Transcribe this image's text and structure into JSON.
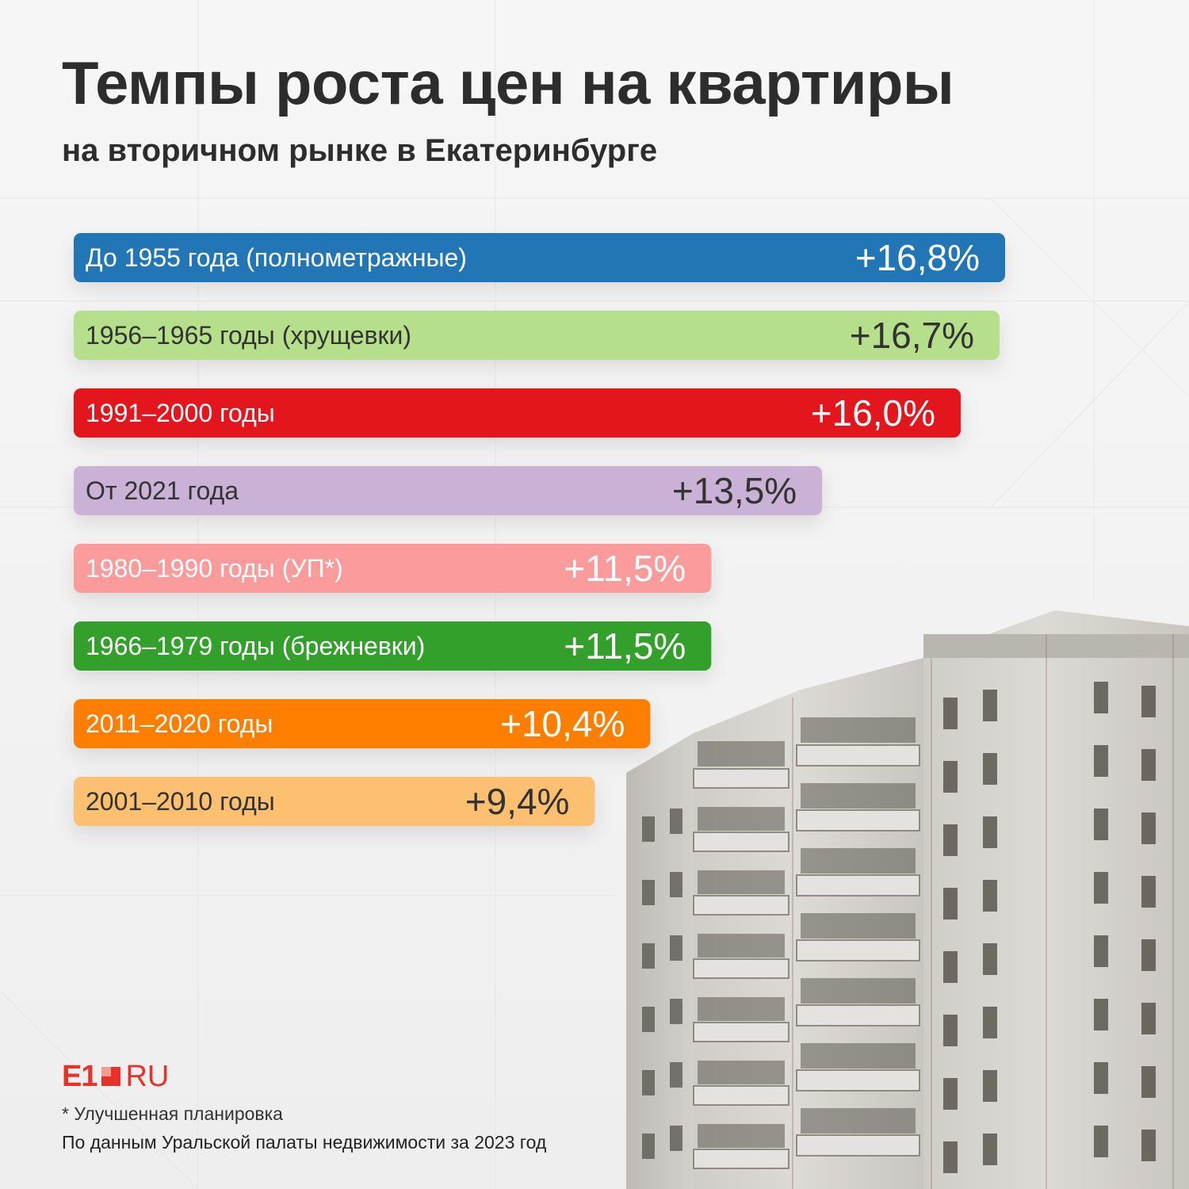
{
  "title": "Темпы роста цен на квартиры",
  "subtitle": "на вторичном рынке в Екатеринбурге",
  "chart_data": {
    "type": "bar",
    "orientation": "horizontal",
    "categories": [
      "До 1955 года (полнометражные)",
      "1956–1965 годы (хрущевки)",
      "1991–2000 годы",
      "От 2021 года",
      "1980–1990 годы (УП*)",
      "1966–1979 годы (брежневки)",
      "2011–2020 годы",
      "2001–2010 годы"
    ],
    "values": [
      16.8,
      16.7,
      16.0,
      13.5,
      11.5,
      11.5,
      10.4,
      9.4
    ],
    "value_labels": [
      "+16,8%",
      "+16,7%",
      "+16,0%",
      "+13,5%",
      "+11,5%",
      "+11,5%",
      "+10,4%",
      "+9,4%"
    ],
    "colors": [
      "#2276b5",
      "#b5df8a",
      "#e2191d",
      "#c9b2d6",
      "#fc9b9b",
      "#33a02c",
      "#fe7f00",
      "#fdbf6f"
    ],
    "text_colors": [
      "#ffffff",
      "#333333",
      "#ffffff",
      "#333333",
      "#ffffff",
      "#ffffff",
      "#ffffff",
      "#333333"
    ],
    "unit": "%",
    "grid": false,
    "legend": "none"
  },
  "logo": {
    "brand": "E1",
    "domain": "RU"
  },
  "footnote": "* Улучшенная планировка",
  "source": "По данным Уральской палаты недвижимости за 2023 год"
}
